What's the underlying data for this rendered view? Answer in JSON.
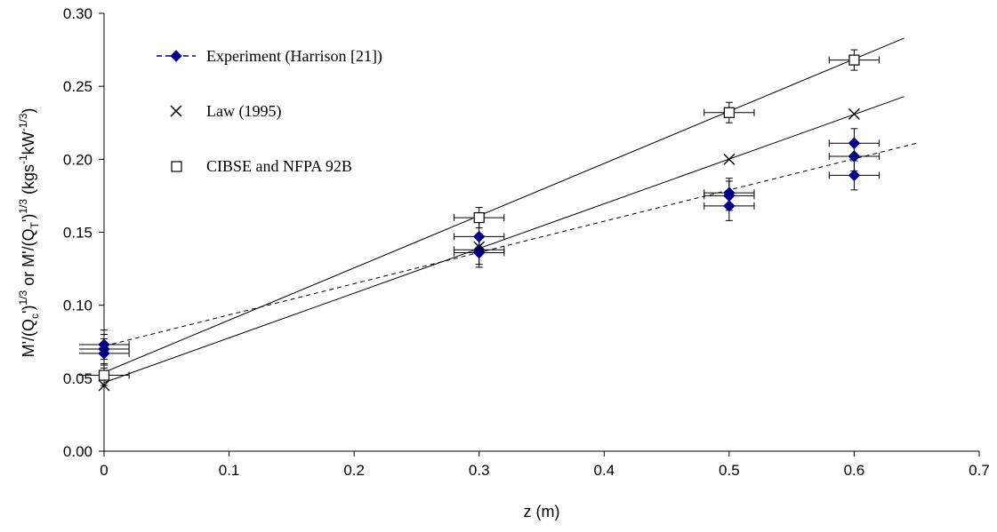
{
  "chart_data": {
    "type": "scatter",
    "title": "",
    "xlabel": "z (m)",
    "ylabel_parts": {
      "base1": "M'/(Q",
      "sub1": "c",
      "mid1": "')",
      "sup1": "1/3",
      "or": " or ",
      "base2": "M'/(Q",
      "sub2": "T",
      "mid2": "')",
      "sup2": "1/3",
      "unit_open": " (kgs",
      "unit_sup1": "-1",
      "unit_mid": "kW",
      "unit_sup2": "-1/3",
      "unit_close": ")"
    },
    "xlim": [
      0,
      0.7
    ],
    "ylim": [
      0,
      0.3
    ],
    "x_ticks": [
      "0",
      "0.1",
      "0.2",
      "0.3",
      "0.4",
      "0.5",
      "0.6",
      "0.7"
    ],
    "y_ticks": [
      "0.00",
      "0.05",
      "0.10",
      "0.15",
      "0.20",
      "0.25",
      "0.30"
    ],
    "grid": false,
    "legend_position": "top-left",
    "series": [
      {
        "name": "Experiment (Harrison [21])",
        "marker": "diamond",
        "color": "#000080",
        "points": [
          {
            "x": 0,
            "y": 0.073
          },
          {
            "x": 0,
            "y": 0.07
          },
          {
            "x": 0,
            "y": 0.067
          },
          {
            "x": 0.3,
            "y": 0.147
          },
          {
            "x": 0.3,
            "y": 0.138
          },
          {
            "x": 0.3,
            "y": 0.136
          },
          {
            "x": 0.5,
            "y": 0.177
          },
          {
            "x": 0.5,
            "y": 0.175
          },
          {
            "x": 0.5,
            "y": 0.168
          },
          {
            "x": 0.6,
            "y": 0.211
          },
          {
            "x": 0.6,
            "y": 0.202
          },
          {
            "x": 0.6,
            "y": 0.189
          }
        ],
        "x_error": 0.02,
        "y_error": 0.01,
        "fit_line": {
          "style": "dashed",
          "x": [
            0,
            0.65
          ],
          "y": [
            0.072,
            0.211
          ]
        }
      },
      {
        "name": "Law (1995)",
        "marker": "x",
        "color": "#000000",
        "points": [
          {
            "x": 0,
            "y": 0.045
          },
          {
            "x": 0.3,
            "y": 0.14
          },
          {
            "x": 0.5,
            "y": 0.2
          },
          {
            "x": 0.6,
            "y": 0.231
          }
        ],
        "fit_line": {
          "style": "solid",
          "x": [
            0,
            0.64
          ],
          "y": [
            0.047,
            0.243
          ]
        }
      },
      {
        "name": "CIBSE and NFPA 92B",
        "marker": "square",
        "color": "#000000",
        "points": [
          {
            "x": 0,
            "y": 0.052
          },
          {
            "x": 0.3,
            "y": 0.16
          },
          {
            "x": 0.5,
            "y": 0.232
          },
          {
            "x": 0.6,
            "y": 0.268
          }
        ],
        "x_error": 0.02,
        "y_error": 0.007,
        "fit_line": {
          "style": "solid",
          "x": [
            0,
            0.64
          ],
          "y": [
            0.054,
            0.283
          ]
        }
      }
    ]
  }
}
